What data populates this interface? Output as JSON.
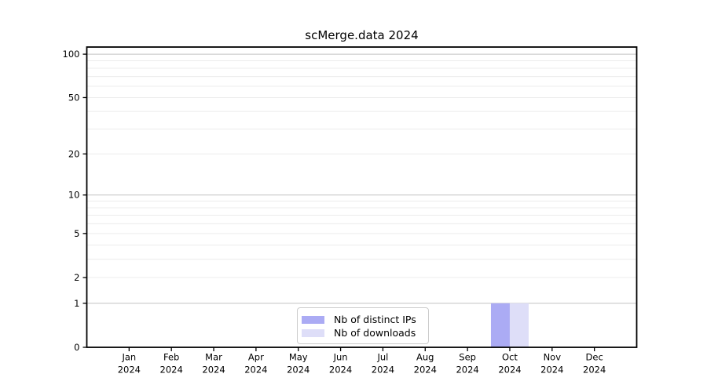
{
  "chart_data": {
    "type": "bar",
    "title": "scMerge.data 2024",
    "categories": [
      "Jan 2024",
      "Feb 2024",
      "Mar 2024",
      "Apr 2024",
      "May 2024",
      "Jun 2024",
      "Jul 2024",
      "Aug 2024",
      "Sep 2024",
      "Oct 2024",
      "Nov 2024",
      "Dec 2024"
    ],
    "x_axis": {
      "month_labels": [
        "Jan",
        "Feb",
        "Mar",
        "Apr",
        "May",
        "Jun",
        "Jul",
        "Aug",
        "Sep",
        "Oct",
        "Nov",
        "Dec"
      ],
      "year_label": "2024"
    },
    "series": [
      {
        "name": "Nb of distinct IPs",
        "color": "#ababf4",
        "values": [
          0,
          0,
          0,
          0,
          0,
          0,
          0,
          0,
          0,
          1,
          0,
          0
        ]
      },
      {
        "name": "Nb of downloads",
        "color": "#dedef8",
        "values": [
          0,
          0,
          0,
          0,
          0,
          0,
          0,
          0,
          0,
          1,
          0,
          0
        ]
      }
    ],
    "y_axis": {
      "scale": "log1p",
      "ticks": [
        0,
        1,
        2,
        5,
        10,
        20,
        50,
        100
      ],
      "major_gridlines": [
        1,
        10,
        100
      ],
      "minor_gridlines": [
        2,
        3,
        4,
        5,
        6,
        7,
        8,
        9,
        20,
        30,
        40,
        50,
        60,
        70,
        80,
        90
      ],
      "ylim": [
        0,
        112
      ]
    },
    "legend": {
      "position": "bottom-center",
      "entries": [
        "Nb of distinct IPs",
        "Nb of downloads"
      ]
    },
    "colors": {
      "background": "#ffffff",
      "axis": "#000000",
      "tick_text": "#000000",
      "major_grid": "#c2c2c2",
      "minor_grid": "#ececec",
      "legend_border": "#cccccc"
    },
    "grid": "horizontal"
  }
}
